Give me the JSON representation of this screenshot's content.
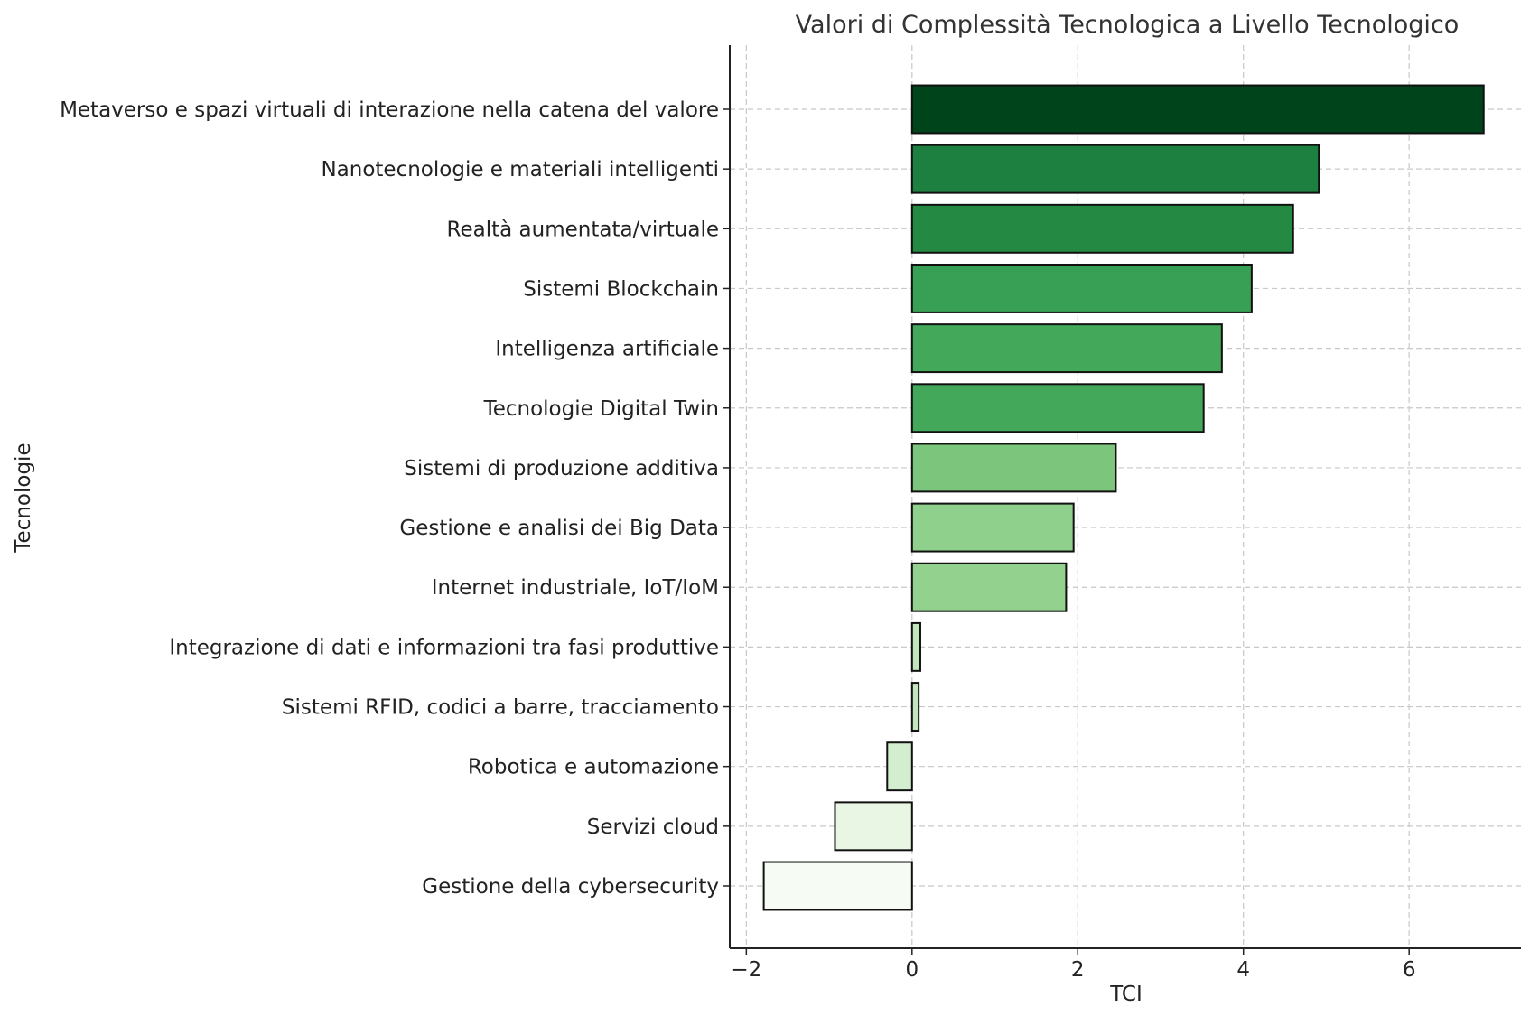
{
  "chart_data": {
    "type": "bar",
    "orientation": "horizontal",
    "title": "Valori di Complessità Tecnologica a Livello Tecnologico",
    "xlabel": "TCI",
    "ylabel": "Tecnologie",
    "xlim": [
      -2.2,
      7.35
    ],
    "xticks": [
      -2,
      0,
      2,
      4,
      6
    ],
    "xtick_labels": [
      "−2",
      "0",
      "2",
      "4",
      "6"
    ],
    "grid": true,
    "categories": [
      "Metaverso e spazi virtuali di interazione nella catena del valore",
      "Nanotecnologie e materiali intelligenti",
      "Realtà aumentata/virtuale",
      "Sistemi Blockchain",
      "Intelligenza artificiale",
      "Tecnologie Digital Twin",
      "Sistemi di produzione additiva",
      "Gestione e analisi dei Big Data",
      "Internet industriale, IoT/IoM",
      "Integrazione di dati e informazioni tra fasi produttive",
      "Sistemi RFID, codici a barre, tracciamento",
      "Robotica e automazione",
      "Servizi cloud",
      "Gestione della cybersecurity"
    ],
    "values": [
      6.9,
      4.91,
      4.6,
      4.1,
      3.74,
      3.52,
      2.46,
      1.95,
      1.86,
      0.1,
      0.08,
      -0.3,
      -0.93,
      -1.79
    ],
    "colors": [
      "#00441b",
      "#1d8041",
      "#248a43",
      "#37a055",
      "#43a85a",
      "#43a85a",
      "#7bc57c",
      "#8fd08c",
      "#92d18e",
      "#c3e6bd",
      "#c3e6bd",
      "#d3eecf",
      "#e8f6e3",
      "#f6fcf4"
    ]
  }
}
